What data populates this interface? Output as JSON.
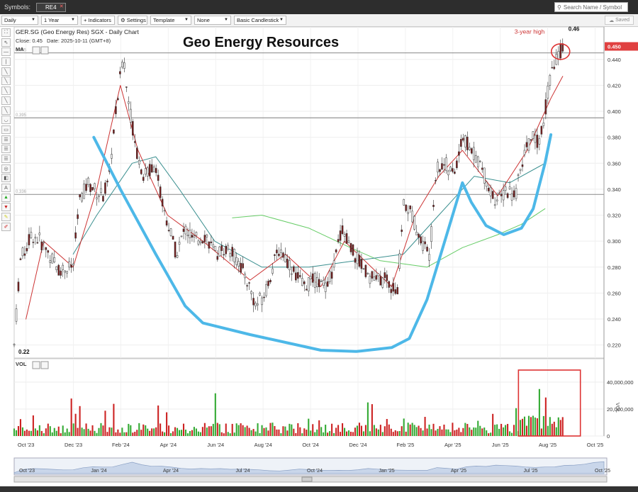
{
  "app": {
    "symbols_label": "Symbols:",
    "symbol": "RE4",
    "search_placeholder": "Search Name / Symbol",
    "saved_label": "Saved"
  },
  "toolbar": {
    "interval": "Daily",
    "range": "1 Year",
    "indicators": "Indicators",
    "settings": "Settings",
    "template": "Template",
    "compare": "None",
    "chart_style": "Basic Candlestick"
  },
  "colors": {
    "up": "#33aa33",
    "down": "#cc2222",
    "cup": "#4db8e8",
    "ma_fast": "#cc3333",
    "ma_mid": "#3a8f8f",
    "ma_slow": "#66cc66",
    "hline": "#888888",
    "last_price": "#e04040"
  },
  "chart_data": {
    "type": "candlestick",
    "title": "GER.SG (Geo Energy Res) SGX - Daily Chart",
    "banner": "Geo Energy Resources",
    "close_label": "Close: 0.45",
    "date_label": "Date: 2025-10-11 (GMT+8)",
    "ma_label": "MA",
    "vol_label": "VOL",
    "vol_axis_label": "VOL",
    "last_price": "0.450",
    "annotations": {
      "high": "0.46",
      "low": "0.22",
      "three_year_high": "3-year high"
    },
    "horizontal_lines": [
      {
        "value": 0.445,
        "label": "0.445"
      },
      {
        "value": 0.395,
        "label": "0.395"
      },
      {
        "value": 0.336,
        "label": "0.336"
      }
    ],
    "ylim": [
      0.21,
      0.465
    ],
    "y_ticks": [
      "0.440",
      "0.420",
      "0.400",
      "0.380",
      "0.360",
      "0.340",
      "0.320",
      "0.300",
      "0.280",
      "0.260",
      "0.240",
      "0.220"
    ],
    "x_ticks": [
      "Oct '23",
      "Dec '23",
      "Feb '24",
      "Apr '24",
      "Jun '24",
      "Aug '24",
      "Oct '24",
      "Dec '24",
      "Feb '25",
      "Apr '25",
      "Jun '25",
      "Aug '25",
      "Oct '25"
    ],
    "vol_ticks": [
      "40,000,000",
      "20,000,000",
      "0"
    ],
    "vol_ylim": [
      0,
      50000000
    ],
    "navigator_ticks": [
      "Oct '23",
      "Jan '24",
      "Apr '24",
      "Jul '24",
      "Oct '24",
      "Jan '25",
      "Apr '25",
      "Jul '25",
      "Oct '25"
    ],
    "price_path": [
      [
        0,
        0.22
      ],
      [
        0.01,
        0.285
      ],
      [
        0.02,
        0.295
      ],
      [
        0.03,
        0.305
      ],
      [
        0.045,
        0.3
      ],
      [
        0.06,
        0.29
      ],
      [
        0.075,
        0.278
      ],
      [
        0.1,
        0.28
      ],
      [
        0.11,
        0.33
      ],
      [
        0.125,
        0.345
      ],
      [
        0.14,
        0.338
      ],
      [
        0.15,
        0.335
      ],
      [
        0.16,
        0.345
      ],
      [
        0.17,
        0.39
      ],
      [
        0.185,
        0.445
      ],
      [
        0.19,
        0.42
      ],
      [
        0.2,
        0.39
      ],
      [
        0.21,
        0.365
      ],
      [
        0.22,
        0.35
      ],
      [
        0.24,
        0.36
      ],
      [
        0.25,
        0.33
      ],
      [
        0.26,
        0.315
      ],
      [
        0.275,
        0.29
      ],
      [
        0.29,
        0.31
      ],
      [
        0.305,
        0.3
      ],
      [
        0.325,
        0.305
      ],
      [
        0.34,
        0.29
      ],
      [
        0.36,
        0.295
      ],
      [
        0.38,
        0.285
      ],
      [
        0.395,
        0.27
      ],
      [
        0.41,
        0.25
      ],
      [
        0.425,
        0.26
      ],
      [
        0.435,
        0.275
      ],
      [
        0.45,
        0.295
      ],
      [
        0.47,
        0.28
      ],
      [
        0.49,
        0.265
      ],
      [
        0.51,
        0.27
      ],
      [
        0.525,
        0.265
      ],
      [
        0.54,
        0.275
      ],
      [
        0.555,
        0.31
      ],
      [
        0.57,
        0.295
      ],
      [
        0.59,
        0.28
      ],
      [
        0.61,
        0.27
      ],
      [
        0.63,
        0.27
      ],
      [
        0.65,
        0.26
      ],
      [
        0.66,
        0.33
      ],
      [
        0.675,
        0.32
      ],
      [
        0.69,
        0.3
      ],
      [
        0.705,
        0.29
      ],
      [
        0.715,
        0.355
      ],
      [
        0.73,
        0.36
      ],
      [
        0.745,
        0.35
      ],
      [
        0.76,
        0.38
      ],
      [
        0.775,
        0.37
      ],
      [
        0.79,
        0.36
      ],
      [
        0.805,
        0.34
      ],
      [
        0.82,
        0.33
      ],
      [
        0.835,
        0.34
      ],
      [
        0.85,
        0.335
      ],
      [
        0.865,
        0.37
      ],
      [
        0.88,
        0.38
      ],
      [
        0.89,
        0.375
      ],
      [
        0.9,
        0.4
      ],
      [
        0.91,
        0.43
      ],
      [
        0.92,
        0.44
      ],
      [
        0.93,
        0.45
      ]
    ],
    "ma_fast": [
      [
        0.02,
        0.24
      ],
      [
        0.05,
        0.3
      ],
      [
        0.1,
        0.28
      ],
      [
        0.14,
        0.34
      ],
      [
        0.18,
        0.42
      ],
      [
        0.21,
        0.37
      ],
      [
        0.26,
        0.32
      ],
      [
        0.32,
        0.3
      ],
      [
        0.4,
        0.27
      ],
      [
        0.46,
        0.29
      ],
      [
        0.52,
        0.265
      ],
      [
        0.56,
        0.3
      ],
      [
        0.64,
        0.265
      ],
      [
        0.68,
        0.32
      ],
      [
        0.72,
        0.35
      ],
      [
        0.76,
        0.37
      ],
      [
        0.82,
        0.335
      ],
      [
        0.87,
        0.37
      ],
      [
        0.91,
        0.41
      ],
      [
        0.93,
        0.427
      ]
    ],
    "ma_mid": [
      [
        0.1,
        0.29
      ],
      [
        0.14,
        0.32
      ],
      [
        0.2,
        0.36
      ],
      [
        0.24,
        0.365
      ],
      [
        0.28,
        0.34
      ],
      [
        0.34,
        0.3
      ],
      [
        0.42,
        0.28
      ],
      [
        0.5,
        0.28
      ],
      [
        0.58,
        0.285
      ],
      [
        0.66,
        0.29
      ],
      [
        0.72,
        0.32
      ],
      [
        0.78,
        0.35
      ],
      [
        0.84,
        0.345
      ],
      [
        0.9,
        0.36
      ]
    ],
    "ma_slow": [
      [
        0.37,
        0.318
      ],
      [
        0.42,
        0.32
      ],
      [
        0.5,
        0.31
      ],
      [
        0.57,
        0.295
      ],
      [
        0.62,
        0.285
      ],
      [
        0.7,
        0.28
      ],
      [
        0.76,
        0.295
      ],
      [
        0.82,
        0.305
      ],
      [
        0.86,
        0.313
      ],
      [
        0.9,
        0.325
      ]
    ],
    "cup_line": [
      [
        0.135,
        0.38
      ],
      [
        0.18,
        0.34
      ],
      [
        0.24,
        0.29
      ],
      [
        0.29,
        0.25
      ],
      [
        0.32,
        0.237
      ],
      [
        0.4,
        0.228
      ],
      [
        0.52,
        0.216
      ],
      [
        0.58,
        0.215
      ],
      [
        0.64,
        0.218
      ],
      [
        0.67,
        0.225
      ],
      [
        0.7,
        0.255
      ],
      [
        0.73,
        0.3
      ],
      [
        0.75,
        0.33
      ],
      [
        0.76,
        0.345
      ],
      [
        0.775,
        0.33
      ],
      [
        0.8,
        0.312
      ],
      [
        0.83,
        0.305
      ],
      [
        0.86,
        0.31
      ],
      [
        0.88,
        0.325
      ],
      [
        0.9,
        0.36
      ],
      [
        0.91,
        0.382
      ]
    ]
  }
}
